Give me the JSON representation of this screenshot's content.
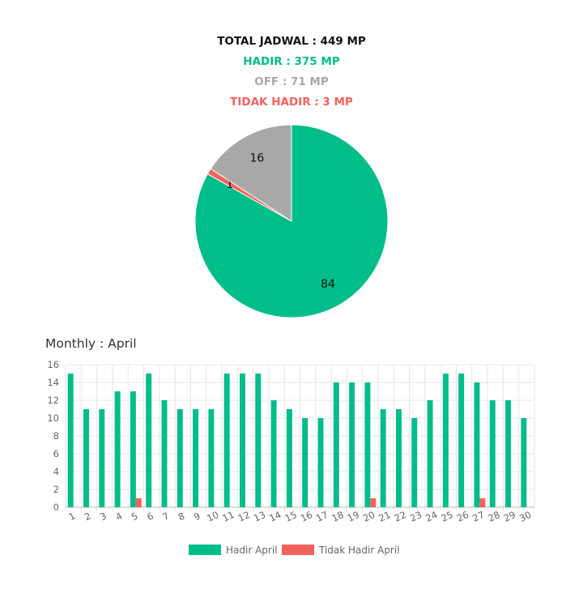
{
  "summary": {
    "total": "TOTAL JADWAL : 449 MP",
    "hadir": "HADIR : 375 MP",
    "off": "OFF : 71 MP",
    "tidak_hadir": "TIDAK HADIR : 3 MP"
  },
  "colors": {
    "hadir": "#00bd89",
    "off": "#a8a8a8",
    "tidak_hadir": "#f4615b",
    "total": "#111111"
  },
  "monthly_title": "Monthly : April",
  "chart_data": [
    {
      "type": "pie",
      "slices": [
        {
          "label": "84",
          "value": 84,
          "color": "#00bd89"
        },
        {
          "label": "1",
          "value": 1,
          "color": "#f4615b"
        },
        {
          "label": "16",
          "value": 16,
          "color": "#a8a8a8"
        }
      ]
    },
    {
      "type": "bar",
      "categories": [
        "1",
        "2",
        "3",
        "4",
        "5",
        "6",
        "7",
        "8",
        "9",
        "10",
        "11",
        "12",
        "13",
        "14",
        "15",
        "16",
        "17",
        "18",
        "19",
        "20",
        "21",
        "22",
        "23",
        "24",
        "25",
        "26",
        "27",
        "28",
        "29",
        "30"
      ],
      "ylim": [
        0,
        16
      ],
      "yticks": [
        0,
        2,
        4,
        6,
        8,
        10,
        12,
        14,
        16
      ],
      "grid": true,
      "legend": "bottom",
      "series": [
        {
          "name": "Hadir April",
          "color": "#00bd89",
          "values": [
            15,
            11,
            11,
            13,
            13,
            15,
            12,
            11,
            11,
            11,
            15,
            15,
            15,
            12,
            11,
            10,
            10,
            14,
            14,
            14,
            11,
            11,
            10,
            12,
            15,
            15,
            14,
            12,
            12,
            10
          ]
        },
        {
          "name": "Tidak Hadir April",
          "color": "#f4615b",
          "values": [
            0,
            0,
            0,
            0,
            1,
            0,
            0,
            0,
            0,
            0,
            0,
            0,
            0,
            0,
            0,
            0,
            0,
            0,
            0,
            1,
            0,
            0,
            0,
            0,
            0,
            0,
            1,
            0,
            0,
            0
          ]
        }
      ]
    }
  ]
}
